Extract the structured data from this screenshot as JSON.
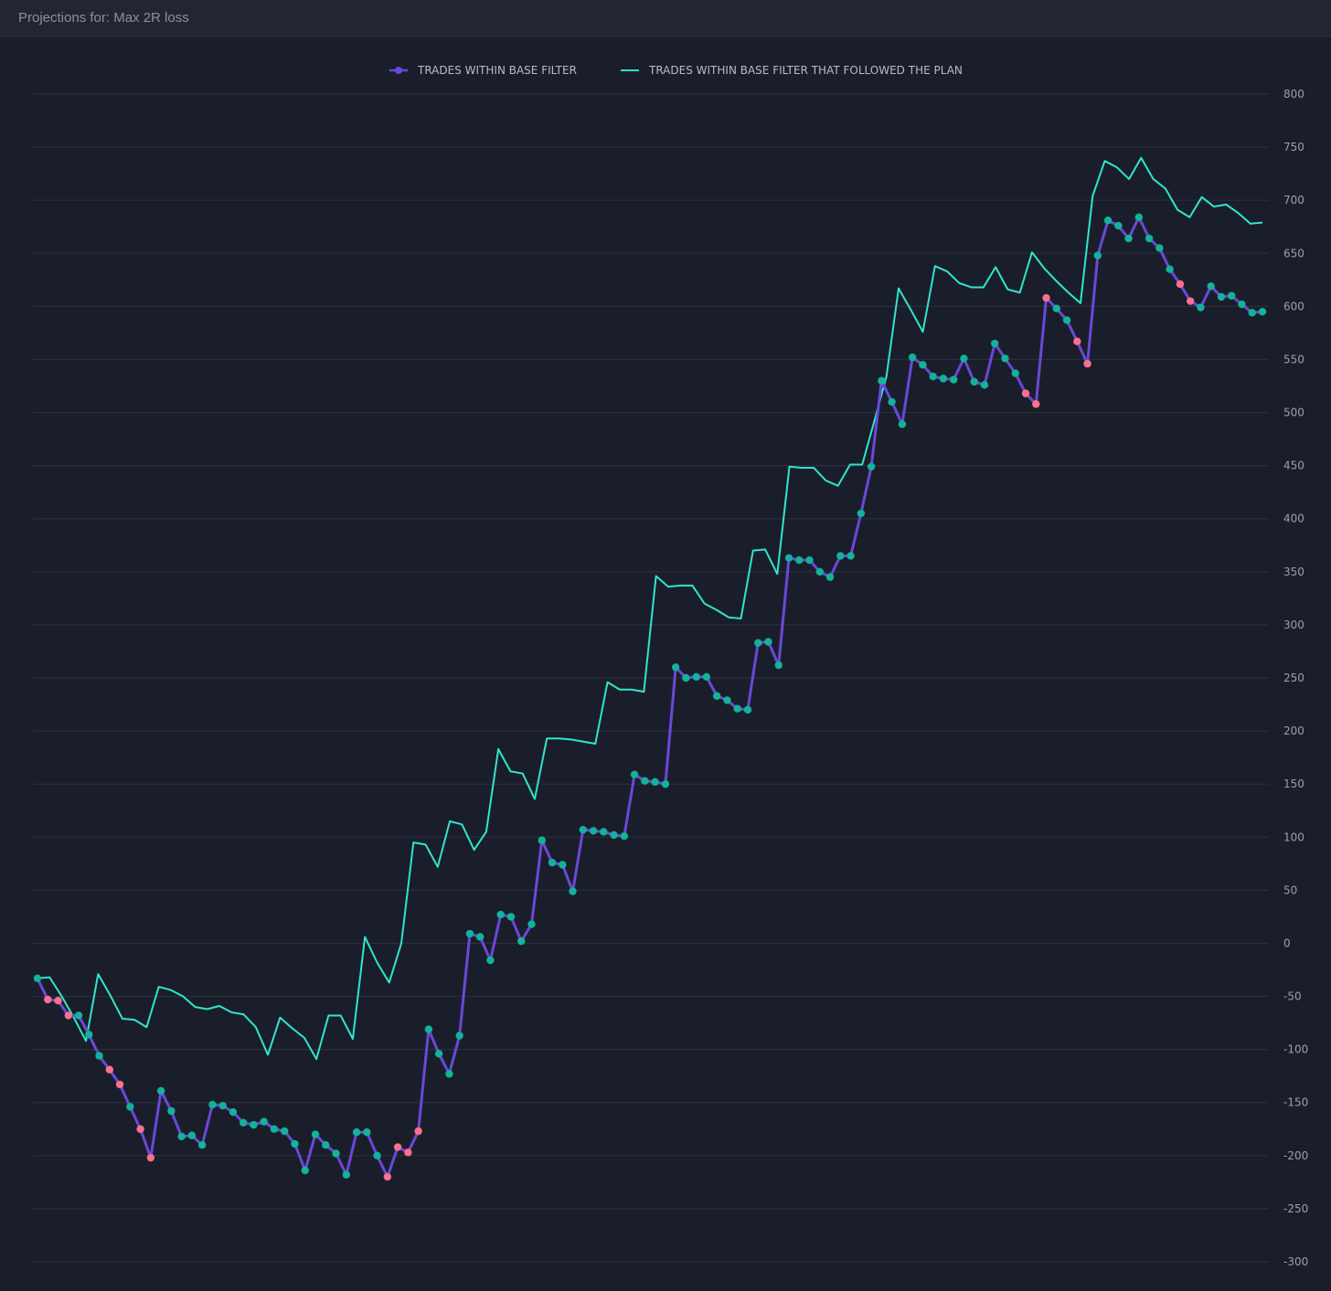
{
  "header": {
    "title": "Projections for: Max 2R loss"
  },
  "colors": {
    "background": "#1a1e2a",
    "grid": "#2a2f3c",
    "tick_text": "#9aa0ab",
    "legend_text": "#b8bcc6",
    "series_1": "#6a48d8",
    "series_2": "#2ee6cc",
    "marker_win": "#12b39a",
    "marker_loss": "#ff6f8e"
  },
  "chart_data": {
    "type": "line",
    "title": "",
    "xlabel": "",
    "ylabel": "",
    "ylim": [
      -300,
      800
    ],
    "yticks": [
      800,
      750,
      700,
      650,
      600,
      550,
      500,
      450,
      400,
      350,
      300,
      250,
      200,
      150,
      100,
      50,
      0,
      -50,
      -100,
      -150,
      -200,
      -250,
      -300
    ],
    "y_axis_position": "right",
    "grid": true,
    "legend_position": "top-center",
    "series": [
      {
        "name": "TRADES WITHIN BASE FILTER",
        "style": "line-with-markers",
        "values": [
          -33,
          -53,
          -54,
          -68,
          -68,
          -86,
          -106,
          -119,
          -133,
          -154,
          -175,
          -202,
          -139,
          -158,
          -182,
          -181,
          -190,
          -152,
          -153,
          -159,
          -169,
          -171,
          -168,
          -175,
          -177,
          -189,
          -214,
          -180,
          -190,
          -198,
          -218,
          -178,
          -178,
          -200,
          -220,
          -192,
          -197,
          -177,
          -81,
          -104,
          -123,
          -87,
          9,
          6,
          -16,
          27,
          25,
          2,
          18,
          97,
          76,
          74,
          49,
          107,
          106,
          105,
          102,
          101,
          159,
          153,
          152,
          150,
          260,
          250,
          251,
          251,
          233,
          229,
          221,
          220,
          283,
          284,
          262,
          363,
          361,
          361,
          350,
          345,
          365,
          365,
          405,
          449,
          530,
          510,
          489,
          552,
          545,
          534,
          532,
          531,
          551,
          529,
          526,
          565,
          551,
          537,
          518,
          508,
          608,
          598,
          587,
          567,
          546,
          648,
          681,
          676,
          664,
          684,
          664,
          655,
          635,
          621,
          605,
          599,
          619,
          609,
          610,
          602,
          594,
          595
        ],
        "markers": [
          "win",
          "loss",
          "loss",
          "loss",
          "win",
          "win",
          "win",
          "loss",
          "loss",
          "win",
          "loss",
          "loss",
          "win",
          "win",
          "win",
          "win",
          "win",
          "win",
          "win",
          "win",
          "win",
          "win",
          "win",
          "win",
          "win",
          "win",
          "win",
          "win",
          "win",
          "win",
          "win",
          "win",
          "win",
          "win",
          "loss",
          "loss",
          "loss",
          "loss",
          "win",
          "win",
          "win",
          "win",
          "win",
          "win",
          "win",
          "win",
          "win",
          "win",
          "win",
          "win",
          "win",
          "win",
          "win",
          "win",
          "win",
          "win",
          "win",
          "win",
          "win",
          "win",
          "win",
          "win",
          "win",
          "win",
          "win",
          "win",
          "win",
          "win",
          "win",
          "win",
          "win",
          "win",
          "win",
          "win",
          "win",
          "win",
          "win",
          "win",
          "win",
          "win",
          "win",
          "win",
          "win",
          "win",
          "win",
          "win",
          "win",
          "win",
          "win",
          "win",
          "win",
          "win",
          "win",
          "win",
          "win",
          "win",
          "loss",
          "loss",
          "loss",
          "win",
          "win",
          "loss",
          "loss",
          "win",
          "win",
          "win",
          "win",
          "win",
          "win",
          "win",
          "win",
          "loss",
          "loss",
          "win",
          "win",
          "win",
          "win",
          "win",
          "win",
          "win"
        ]
      },
      {
        "name": "TRADES WITHIN BASE FILTER THAT FOLLOWED THE PLAN",
        "style": "line",
        "values": [
          -33,
          -32,
          -50,
          -70,
          -92,
          -29,
          -49,
          -71,
          -72,
          -79,
          -41,
          -44,
          -50,
          -60,
          -62,
          -59,
          -65,
          -67,
          -79,
          -105,
          -70,
          -80,
          -89,
          -109,
          -68,
          -68,
          -90,
          6,
          -18,
          -37,
          0,
          95,
          93,
          72,
          115,
          112,
          88,
          105,
          183,
          162,
          160,
          136,
          193,
          193,
          192,
          190,
          188,
          246,
          239,
          239,
          237,
          346,
          336,
          337,
          337,
          320,
          314,
          307,
          306,
          370,
          371,
          348,
          449,
          448,
          448,
          436,
          431,
          451,
          451,
          492,
          534,
          617,
          597,
          576,
          638,
          633,
          622,
          618,
          618,
          637,
          616,
          613,
          651,
          636,
          624,
          613,
          603,
          704,
          737,
          731,
          720,
          740,
          720,
          711,
          691,
          684,
          703,
          694,
          696,
          688,
          678,
          679
        ]
      }
    ]
  }
}
